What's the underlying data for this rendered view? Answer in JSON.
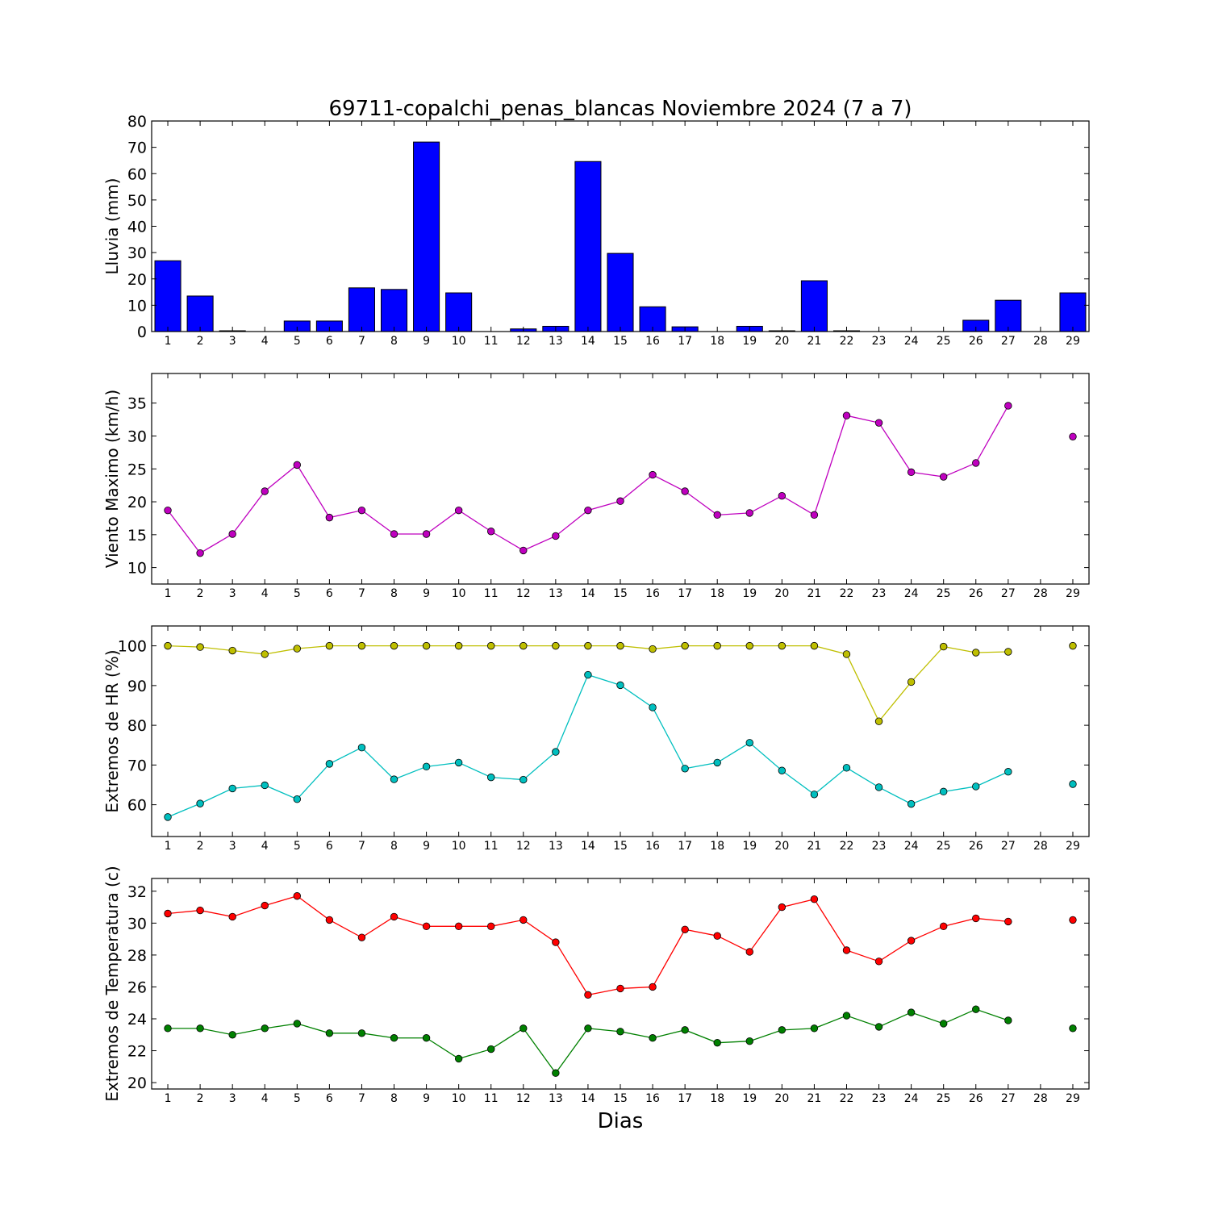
{
  "figure": {
    "title": "69711-copalchi_penas_blancas Noviembre 2024  (7 a 7)",
    "xlabel": "Dias"
  },
  "chart_data": [
    {
      "type": "bar",
      "ylabel": "Lluvia (mm)",
      "categories": [
        "1",
        "2",
        "3",
        "4",
        "5",
        "6",
        "7",
        "8",
        "9",
        "10",
        "11",
        "12",
        "13",
        "14",
        "15",
        "16",
        "17",
        "18",
        "19",
        "20",
        "21",
        "22",
        "23",
        "24",
        "25",
        "26",
        "27",
        "28",
        "29"
      ],
      "values": [
        26.9,
        13.5,
        0.3,
        0.0,
        4.0,
        4.0,
        16.6,
        16.0,
        72.0,
        14.7,
        0.0,
        1.0,
        2.0,
        64.6,
        29.7,
        9.4,
        1.8,
        0.0,
        2.0,
        0.3,
        19.3,
        0.3,
        0.0,
        0.0,
        0.0,
        4.3,
        11.9,
        0.0,
        14.7
      ],
      "ylim": [
        0,
        80
      ],
      "yticks": [
        0,
        10,
        20,
        30,
        40,
        50,
        60,
        70,
        80
      ],
      "color": "#0000ff"
    },
    {
      "type": "line",
      "ylabel": "Viento Maximo (km/h)",
      "categories": [
        "1",
        "2",
        "3",
        "4",
        "5",
        "6",
        "7",
        "8",
        "9",
        "10",
        "11",
        "12",
        "13",
        "14",
        "15",
        "16",
        "17",
        "18",
        "19",
        "20",
        "21",
        "22",
        "23",
        "24",
        "25",
        "26",
        "27",
        "28",
        "29"
      ],
      "series": [
        {
          "color": "#bf00bf",
          "values": [
            18.7,
            12.2,
            15.1,
            21.6,
            25.6,
            17.6,
            18.7,
            15.1,
            15.1,
            18.7,
            15.5,
            12.6,
            14.8,
            18.7,
            20.1,
            24.1,
            21.6,
            18.0,
            18.3,
            20.9,
            18.0,
            33.1,
            32.0,
            24.5,
            23.8,
            25.9,
            34.6,
            null,
            29.9
          ]
        }
      ],
      "ylim": [
        7.5,
        39.5
      ],
      "yticks": [
        10,
        15,
        20,
        25,
        30,
        35
      ]
    },
    {
      "type": "line",
      "ylabel": "Extremos de HR (%)",
      "categories": [
        "1",
        "2",
        "3",
        "4",
        "5",
        "6",
        "7",
        "8",
        "9",
        "10",
        "11",
        "12",
        "13",
        "14",
        "15",
        "16",
        "17",
        "18",
        "19",
        "20",
        "21",
        "22",
        "23",
        "24",
        "25",
        "26",
        "27",
        "28",
        "29"
      ],
      "series": [
        {
          "color": "#bfbf00",
          "values": [
            100,
            99.7,
            98.8,
            97.9,
            99.3,
            100,
            100,
            100,
            100,
            100,
            100,
            100,
            100,
            100,
            100,
            99.2,
            100,
            100,
            100,
            100,
            100,
            97.9,
            81.0,
            90.9,
            99.8,
            98.3,
            98.5,
            null,
            100
          ]
        },
        {
          "color": "#00bfbf",
          "values": [
            56.9,
            60.3,
            64.1,
            64.9,
            61.4,
            70.3,
            74.4,
            66.4,
            69.6,
            70.6,
            66.9,
            66.3,
            73.3,
            92.7,
            90.1,
            84.5,
            69.1,
            70.6,
            75.6,
            68.6,
            62.6,
            69.3,
            64.4,
            60.2,
            63.3,
            64.6,
            68.3,
            null,
            65.2
          ]
        }
      ],
      "ylim": [
        52,
        105
      ],
      "yticks": [
        60,
        70,
        80,
        90,
        100
      ]
    },
    {
      "type": "line",
      "ylabel": "Extremos de Temperatura (c)",
      "categories": [
        "1",
        "2",
        "3",
        "4",
        "5",
        "6",
        "7",
        "8",
        "9",
        "10",
        "11",
        "12",
        "13",
        "14",
        "15",
        "16",
        "17",
        "18",
        "19",
        "20",
        "21",
        "22",
        "23",
        "24",
        "25",
        "26",
        "27",
        "28",
        "29"
      ],
      "series": [
        {
          "color": "#ff0000",
          "values": [
            30.6,
            30.8,
            30.4,
            31.1,
            31.7,
            30.2,
            29.1,
            30.4,
            29.8,
            29.8,
            29.8,
            30.2,
            28.8,
            25.5,
            25.9,
            26.0,
            29.6,
            29.2,
            28.2,
            31.0,
            31.5,
            28.3,
            27.6,
            28.9,
            29.8,
            30.3,
            30.1,
            null,
            30.2
          ]
        },
        {
          "color": "#008000",
          "values": [
            23.4,
            23.4,
            23.0,
            23.4,
            23.7,
            23.1,
            23.1,
            22.8,
            22.8,
            21.5,
            22.1,
            23.4,
            20.6,
            23.4,
            23.2,
            22.8,
            23.3,
            22.5,
            22.6,
            23.3,
            23.4,
            24.2,
            23.5,
            24.4,
            23.7,
            24.6,
            23.9,
            null,
            23.4
          ]
        }
      ],
      "ylim": [
        19.6,
        32.8
      ],
      "yticks": [
        20,
        22,
        24,
        26,
        28,
        30,
        32
      ]
    }
  ]
}
